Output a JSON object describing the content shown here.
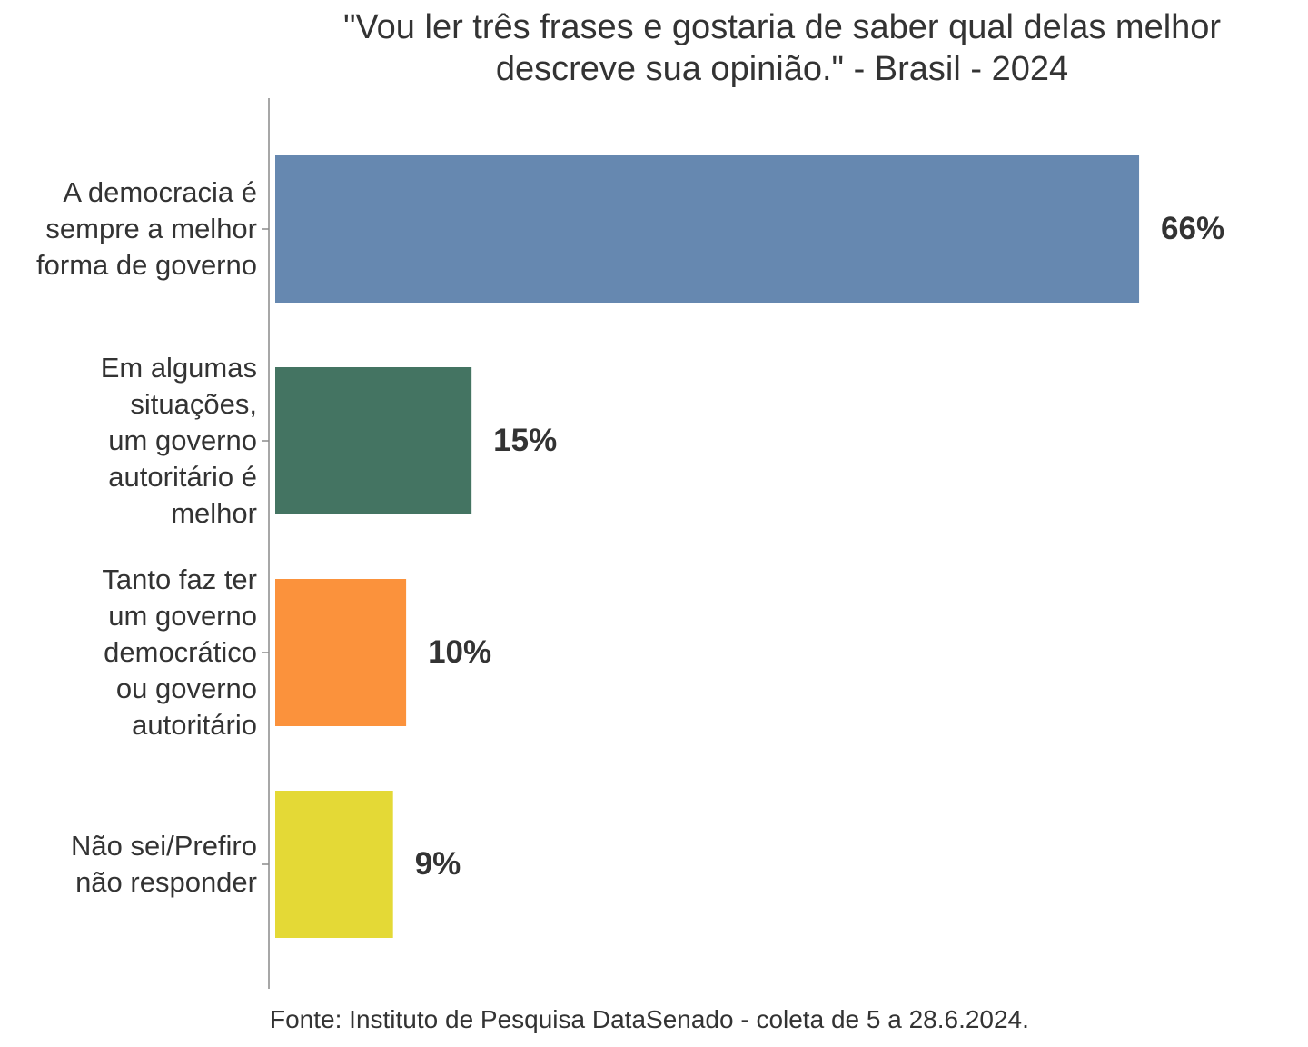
{
  "chart_data": {
    "type": "bar",
    "orientation": "horizontal",
    "title": "\"Vou ler três frases e gostaria de saber qual delas melhor\ndescreve sua opinião.\" - Brasil - 2024",
    "categories": [
      "A democracia é\nsempre a melhor\nforma de governo",
      "Em algumas\nsituações,\num governo\nautoritário é\nmelhor",
      "Tanto faz ter\num governo\ndemocrático\nou governo\nautoritário",
      "Não sei/Prefiro\nnão responder"
    ],
    "values": [
      66,
      15,
      10,
      9
    ],
    "data_labels": [
      "66%",
      "15%",
      "10%",
      "9%"
    ],
    "colors": [
      "#6688b0",
      "#447462",
      "#fb923c",
      "#e4d936"
    ],
    "xlabel": "",
    "ylabel": "",
    "x_axis_visible": false,
    "grid": false,
    "source": "Fonte: Instituto de Pesquisa DataSenado - coleta de 5 a 28.6.2024."
  },
  "style": {
    "text_color": "#333333",
    "axis_color": "#8a8a8a"
  }
}
